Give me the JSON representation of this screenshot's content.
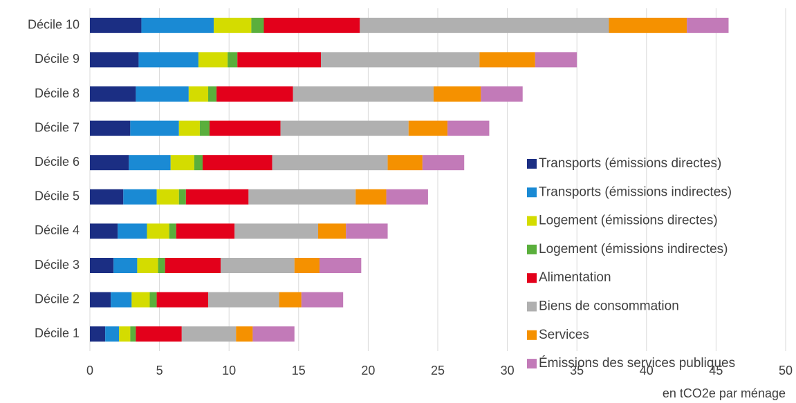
{
  "chart_data": {
    "type": "stacked_barh",
    "categories": [
      "Décile 10",
      "Décile 9",
      "Décile 8",
      "Décile 7",
      "Décile 6",
      "Décile 5",
      "Décile 4",
      "Décile 3",
      "Décile 2",
      "Décile 1"
    ],
    "series": [
      {
        "name": "Transports (émissions directes)",
        "color": "#1b2e83",
        "values": [
          3.7,
          3.5,
          3.3,
          2.9,
          2.8,
          2.4,
          2.0,
          1.7,
          1.5,
          1.1
        ]
      },
      {
        "name": "Transports (émissions indirectes)",
        "color": "#1a8ad4",
        "values": [
          5.2,
          4.3,
          3.8,
          3.5,
          3.0,
          2.4,
          2.1,
          1.7,
          1.5,
          1.0
        ]
      },
      {
        "name": "Logement (émissions directes)",
        "color": "#d4dc00",
        "values": [
          2.7,
          2.1,
          1.4,
          1.5,
          1.7,
          1.6,
          1.6,
          1.5,
          1.3,
          0.8
        ]
      },
      {
        "name": "Logement (émissions indirectes)",
        "color": "#5aaf3c",
        "values": [
          0.9,
          0.7,
          0.6,
          0.7,
          0.6,
          0.5,
          0.5,
          0.5,
          0.5,
          0.4
        ]
      },
      {
        "name": "Alimentation",
        "color": "#e3001b",
        "values": [
          6.9,
          6.0,
          5.5,
          5.1,
          5.0,
          4.5,
          4.2,
          4.0,
          3.7,
          3.3
        ]
      },
      {
        "name": "Biens de consommation",
        "color": "#b0b0b0",
        "values": [
          17.9,
          11.4,
          10.1,
          9.2,
          8.3,
          7.7,
          6.0,
          5.3,
          5.1,
          3.9
        ]
      },
      {
        "name": "Services",
        "color": "#f59100",
        "values": [
          5.6,
          4.0,
          3.4,
          2.8,
          2.5,
          2.2,
          2.0,
          1.8,
          1.6,
          1.2
        ]
      },
      {
        "name": "Émissions des services publiques",
        "color": "#c27ab8",
        "values": [
          3.0,
          3.0,
          3.0,
          3.0,
          3.0,
          3.0,
          3.0,
          3.0,
          3.0,
          3.0
        ]
      }
    ],
    "xlabel": "en tCO2e par ménage",
    "xlim": [
      0,
      50
    ],
    "xticks": [
      0,
      5,
      10,
      15,
      20,
      25,
      30,
      35,
      40,
      45,
      50
    ],
    "grid": true,
    "legend_position": "right"
  }
}
